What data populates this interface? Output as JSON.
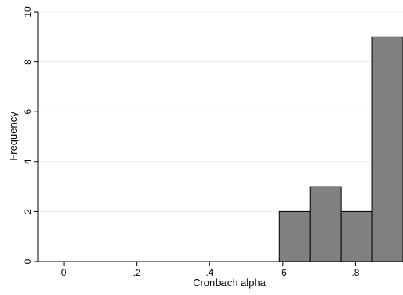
{
  "chart_data": {
    "type": "bar",
    "subtype": "histogram",
    "xlabel": "Cronbach alpha",
    "ylabel": "Frequency",
    "xlim": [
      -0.07,
      0.93
    ],
    "ylim": [
      0,
      10
    ],
    "x_ticks": [
      {
        "value": 0,
        "label": "0"
      },
      {
        "value": 0.2,
        "label": ".2"
      },
      {
        "value": 0.4,
        "label": ".4"
      },
      {
        "value": 0.6,
        "label": ".6"
      },
      {
        "value": 0.8,
        "label": ".8"
      }
    ],
    "y_ticks": [
      {
        "value": 0,
        "label": "0"
      },
      {
        "value": 2,
        "label": "2"
      },
      {
        "value": 4,
        "label": "4"
      },
      {
        "value": 6,
        "label": "6"
      },
      {
        "value": 8,
        "label": "8"
      },
      {
        "value": 10,
        "label": "10"
      }
    ],
    "bins": [
      {
        "from": 0.59,
        "to": 0.675,
        "value": 2
      },
      {
        "from": 0.675,
        "to": 0.76,
        "value": 3
      },
      {
        "from": 0.76,
        "to": 0.845,
        "value": 2
      },
      {
        "from": 0.845,
        "to": 0.93,
        "value": 9
      }
    ],
    "grid": true,
    "colors": {
      "bar_fill": "#808080",
      "bar_stroke": "#000000",
      "grid": "#e8eef2",
      "axis": "#000000"
    }
  }
}
